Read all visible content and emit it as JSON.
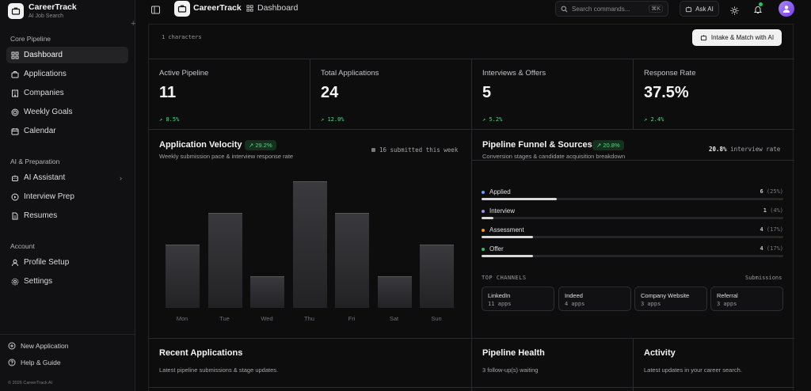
{
  "sidebar": {
    "brand_name": "CareerTrack",
    "brand_sub": "AI Job Search",
    "sections": {
      "core": "Core Pipeline",
      "ai": "AI & Preparation",
      "account": "Account"
    },
    "items": {
      "dashboard": "Dashboard",
      "applications": "Applications",
      "companies": "Companies",
      "weekly_goals": "Weekly Goals",
      "calendar": "Calendar",
      "ai_assistant": "AI Assistant",
      "interview_prep": "Interview Prep",
      "resumes": "Resumes",
      "profile_setup": "Profile Setup",
      "settings": "Settings"
    },
    "footer": {
      "new_application": "New Application",
      "help_guide": "Help & Guide",
      "copyright": "© 2026 CareerTrack AI"
    }
  },
  "header": {
    "title": "CareerTrack",
    "breadcrumb": "Dashboard",
    "search_placeholder": "Search commands...",
    "search_shortcut": "⌘K",
    "ask_ai": "Ask AI"
  },
  "toolbar": {
    "char_count": "1 characters",
    "intake_button": "Intake & Match with AI"
  },
  "stats": [
    {
      "label": "Active Pipeline",
      "value": "11",
      "delta": "8.5%"
    },
    {
      "label": "Total Applications",
      "value": "24",
      "delta": "12.0%"
    },
    {
      "label": "Interviews & Offers",
      "value": "5",
      "delta": "5.2%"
    },
    {
      "label": "Response Rate",
      "value": "37.5%",
      "delta": "2.4%"
    }
  ],
  "velocity": {
    "title": "Application Velocity",
    "badge": "29.2%",
    "subtitle": "Weekly submission pace & interview response rate",
    "submitted_note": "16 submitted this week"
  },
  "chart_data": {
    "type": "bar",
    "categories": [
      "Mon",
      "Tue",
      "Wed",
      "Thu",
      "Fri",
      "Sat",
      "Sun"
    ],
    "values": [
      2,
      3,
      1,
      4,
      3,
      1,
      2
    ],
    "ylim": [
      0,
      4.5
    ]
  },
  "funnel": {
    "title": "Pipeline Funnel & Sources",
    "badge": "20.8%",
    "subtitle": "Conversion stages & candidate acquisition breakdown",
    "rate_value": "20.8%",
    "rate_label": "interview rate",
    "stages": [
      {
        "name": "Applied",
        "count": "6",
        "pct": "(25%)",
        "fraction": 0.25,
        "color": "#60a5fa"
      },
      {
        "name": "Interview",
        "count": "1",
        "pct": "(4%)",
        "fraction": 0.04,
        "color": "#a78bfa"
      },
      {
        "name": "Assessment",
        "count": "4",
        "pct": "(17%)",
        "fraction": 0.17,
        "color": "#f59e0b"
      },
      {
        "name": "Offer",
        "count": "4",
        "pct": "(17%)",
        "fraction": 0.17,
        "color": "#22c55e"
      }
    ],
    "channels_label": "TOP CHANNELS",
    "submissions_label": "Submissions",
    "channels": [
      {
        "name": "LinkedIn",
        "count": "11 apps"
      },
      {
        "name": "Indeed",
        "count": "4 apps"
      },
      {
        "name": "Company Website",
        "count": "3 apps"
      },
      {
        "name": "Referral",
        "count": "3 apps"
      }
    ]
  },
  "recent": {
    "title": "Recent Applications",
    "subtitle": "Latest pipeline submissions & stage updates."
  },
  "health": {
    "title": "Pipeline Health",
    "subtitle": "3 follow-up(s) waiting"
  },
  "activity": {
    "title": "Activity",
    "subtitle": "Latest updates in your career search."
  }
}
